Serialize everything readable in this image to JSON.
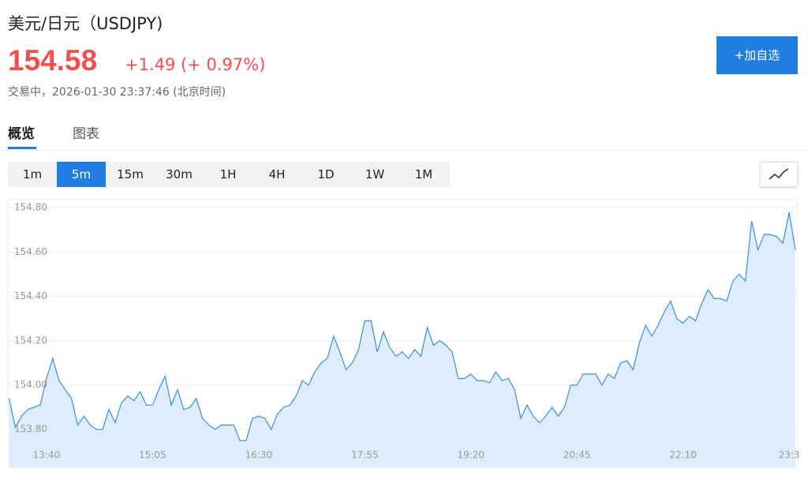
{
  "header": {
    "title": "美元/日元（USDJPY)",
    "price": "154.58",
    "change": "+1.49 (+ 0.97%)",
    "status": "交易中，2026-01-30 23:37:46 (北京时间)",
    "button": "+加自选"
  },
  "tabs": [
    "概览",
    "图表"
  ],
  "timeframes": [
    "1m",
    "5m",
    "15m",
    "30m",
    "1H",
    "4H",
    "1D",
    "1W",
    "1M"
  ],
  "chart_data": {
    "type": "area",
    "color": "#3a8ee6",
    "fill": "#deedfb",
    "grid": true,
    "categories": [
      null,
      null,
      null,
      null,
      null,
      null,
      "13:40",
      null,
      null,
      null,
      null,
      null,
      null,
      null,
      null,
      null,
      null,
      null,
      null,
      null,
      null,
      null,
      null,
      "15:05",
      null,
      null,
      null,
      null,
      null,
      null,
      null,
      null,
      null,
      null,
      null,
      null,
      null,
      null,
      null,
      null,
      "16:30",
      null,
      null,
      null,
      null,
      null,
      null,
      null,
      null,
      null,
      null,
      null,
      null,
      null,
      null,
      null,
      null,
      "17:55",
      null,
      null,
      null,
      null,
      null,
      null,
      null,
      null,
      null,
      null,
      null,
      null,
      null,
      null,
      null,
      null,
      "19:20",
      null,
      null,
      null,
      null,
      null,
      null,
      null,
      null,
      null,
      null,
      null,
      null,
      null,
      null,
      null,
      null,
      "20:45",
      null,
      null,
      null,
      null,
      null,
      null,
      null,
      null,
      null,
      null,
      null,
      null,
      null,
      null,
      null,
      null,
      "22:10",
      null,
      null,
      null,
      null,
      null,
      null,
      null,
      null,
      null,
      null,
      null,
      null,
      null,
      null,
      null,
      null,
      "23:3",
      null
    ],
    "values": [
      153.94,
      153.81,
      153.86,
      153.89,
      153.9,
      153.91,
      154.03,
      154.12,
      154.02,
      153.98,
      153.94,
      153.82,
      153.86,
      153.82,
      153.8,
      153.8,
      153.89,
      153.83,
      153.92,
      153.95,
      153.93,
      153.97,
      153.91,
      153.91,
      153.98,
      154.04,
      153.91,
      153.98,
      153.89,
      153.9,
      153.94,
      153.85,
      153.82,
      153.8,
      153.82,
      153.82,
      153.82,
      153.75,
      153.75,
      153.85,
      153.86,
      153.85,
      153.8,
      153.87,
      153.9,
      153.91,
      153.95,
      154.02,
      154.0,
      154.06,
      154.1,
      154.12,
      154.22,
      154.15,
      154.07,
      154.1,
      154.16,
      154.29,
      154.29,
      154.15,
      154.24,
      154.17,
      154.13,
      154.15,
      154.12,
      154.16,
      154.13,
      154.26,
      154.18,
      154.2,
      154.18,
      154.15,
      154.03,
      154.03,
      154.05,
      154.02,
      154.02,
      154.01,
      154.06,
      154.02,
      154.03,
      153.98,
      153.85,
      153.91,
      153.86,
      153.83,
      153.86,
      153.9,
      153.86,
      153.9,
      154.0,
      154.0,
      154.05,
      154.05,
      154.05,
      154.0,
      154.05,
      154.03,
      154.1,
      154.11,
      154.07,
      154.19,
      154.27,
      154.22,
      154.27,
      154.33,
      154.38,
      154.3,
      154.28,
      154.31,
      154.29,
      154.37,
      154.43,
      154.39,
      154.39,
      154.38,
      154.47,
      154.5,
      154.47,
      154.74,
      154.61,
      154.68,
      154.68,
      154.67,
      154.64,
      154.78,
      154.61
    ],
    "ylim": [
      153.63,
      154.84
    ],
    "yticks": [
      {
        "value": 153.8,
        "label": "153.80"
      },
      {
        "value": 154.0,
        "label": "154.00"
      },
      {
        "value": 154.2,
        "label": "154.20"
      },
      {
        "value": 154.4,
        "label": "154.40"
      },
      {
        "value": 154.6,
        "label": "154.60"
      },
      {
        "value": 154.8,
        "label": "154.80"
      }
    ]
  }
}
